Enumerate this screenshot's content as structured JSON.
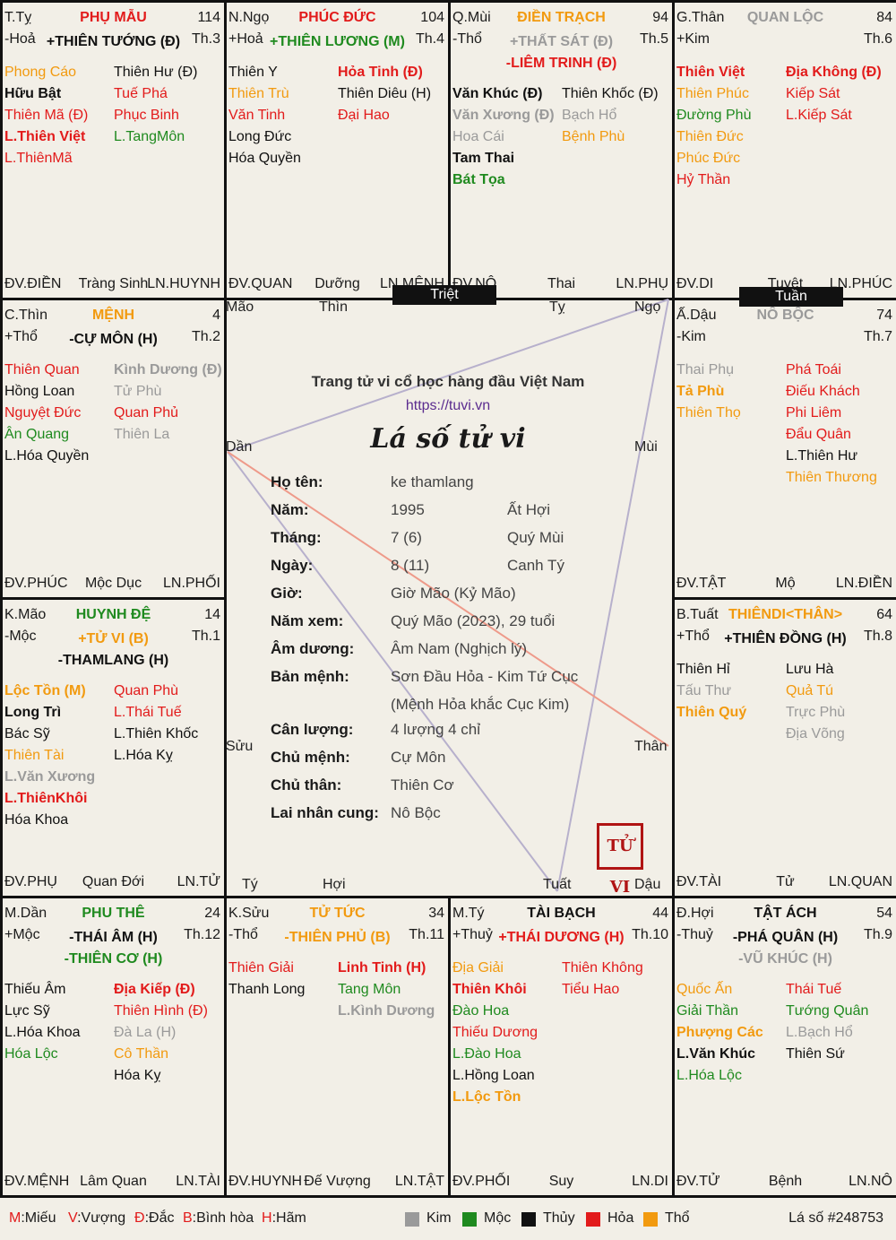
{
  "center": {
    "branches": {
      "mao": "Mão",
      "thin": "Thìn",
      "ty": "Tỵ",
      "ngo": "Ngọ",
      "dan": "Dần",
      "mui": "Mùi",
      "suu": "Sửu",
      "than": "Thân",
      "tyy": "Tý",
      "hoi": "Hợi",
      "tuat": "Tuất",
      "dau": "Dậu"
    },
    "triet": "Triệt",
    "tuan": "Tuần",
    "site_title": "Trang tử vi cổ học hàng đầu Việt Nam",
    "url": "https://tuvi.vn",
    "main_title": "Lá số tử vi",
    "seal": "TỬ VI",
    "info": [
      {
        "k": "Họ tên:",
        "v": "ke thamlang",
        "v2": ""
      },
      {
        "k": "Năm:",
        "v": "1995",
        "v2": "Ất Hợi"
      },
      {
        "k": "Tháng:",
        "v": "7 (6)",
        "v2": "Quý Mùi"
      },
      {
        "k": "Ngày:",
        "v": "8 (11)",
        "v2": "Canh Tý"
      },
      {
        "k": "Giờ:",
        "v": "Giờ Mão (Kỷ Mão)",
        "v2": ""
      },
      {
        "k": "Năm xem:",
        "v": "Quý Mão (2023), 29 tuổi",
        "v2": ""
      },
      {
        "k": "Âm dương:",
        "v": "Âm Nam (Nghịch lý)",
        "v2": ""
      },
      {
        "k": "Bản mệnh:",
        "v": "Sơn Đầu Hỏa - Kim Tứ Cục",
        "v2": ""
      },
      {
        "k": "",
        "v": "(Mệnh Hỏa khắc Cục Kim)",
        "v2": ""
      },
      {
        "k": "Cân lượng:",
        "v": "4 lượng 4 chỉ",
        "v2": ""
      },
      {
        "k": "Chủ mệnh:",
        "v": "Cự Môn",
        "v2": ""
      },
      {
        "k": "Chủ thân:",
        "v": "Thiên Cơ",
        "v2": ""
      },
      {
        "k": "Lai nhân cung:",
        "v": "Nô Bộc",
        "v2": ""
      }
    ]
  },
  "colors": {
    "K": "#9a9a9a",
    "M": "#1f8a1f",
    "T": "#111111",
    "H": "#e21b1b",
    "O": "#f29a0f"
  },
  "cells": [
    {
      "id": "ty",
      "branch": "T.Tỵ",
      "eh": "-Hoả",
      "pname": "PHỤ MẪU",
      "pc": "H",
      "age": "114",
      "th": "Th.3",
      "mstars": [
        {
          "t": "+THIÊN TƯỚNG (Đ)",
          "c": "T"
        }
      ],
      "left": [
        {
          "t": "Phong Cáo",
          "c": "O"
        },
        {
          "t": "Hữu Bật",
          "c": "T",
          "b": 1
        },
        {
          "t": "Thiên Mã (Đ)",
          "c": "H"
        },
        {
          "t": "L.Thiên Việt",
          "c": "H",
          "b": 1
        },
        {
          "t": "L.ThiênMã",
          "c": "H"
        }
      ],
      "right": [
        {
          "t": "Thiên Hư (Đ)",
          "c": "T"
        },
        {
          "t": "Tuế Phá",
          "c": "H"
        },
        {
          "t": "Phục Binh",
          "c": "H"
        },
        {
          "t": "L.TangMôn",
          "c": "M"
        }
      ],
      "foot": [
        "ĐV.ĐIỀN",
        "Tràng Sinh",
        "LN.HUYNH"
      ]
    },
    {
      "id": "ngo",
      "branch": "N.Ngọ",
      "eh": "+Hoả",
      "pname": "PHÚC ĐỨC",
      "pc": "H",
      "age": "104",
      "th": "Th.4",
      "mstars": [
        {
          "t": "+THIÊN LƯƠNG (M)",
          "c": "M"
        }
      ],
      "left": [
        {
          "t": "Thiên Y",
          "c": "T"
        },
        {
          "t": "Thiên Trù",
          "c": "O"
        },
        {
          "t": "Văn Tinh",
          "c": "H"
        },
        {
          "t": "Long Đức",
          "c": "T"
        },
        {
          "t": "Hóa Quyền",
          "c": "T"
        }
      ],
      "right": [
        {
          "t": "Hỏa Tinh (Đ)",
          "c": "H",
          "b": 1
        },
        {
          "t": "Thiên Diêu (H)",
          "c": "T"
        },
        {
          "t": "Đại Hao",
          "c": "H"
        }
      ],
      "foot": [
        "ĐV.QUAN",
        "Dưỡng",
        "LN.MỆNH"
      ]
    },
    {
      "id": "mui",
      "branch": "Q.Mùi",
      "eh": "-Thổ",
      "pname": "ĐIỀN TRẠCH",
      "pc": "O",
      "age": "94",
      "th": "Th.5",
      "mstars": [
        {
          "t": "+THẤT SÁT (Đ)",
          "c": "K"
        },
        {
          "t": "-LIÊM TRINH (Đ)",
          "c": "H"
        }
      ],
      "left": [
        {
          "t": "Văn Khúc (Đ)",
          "c": "T",
          "b": 1
        },
        {
          "t": "Văn Xương (Đ)",
          "c": "K",
          "b": 1
        },
        {
          "t": "Hoa Cái",
          "c": "K"
        },
        {
          "t": "Tam Thai",
          "c": "T",
          "b": 1
        },
        {
          "t": "Bát Tọa",
          "c": "M",
          "b": 1
        }
      ],
      "right": [
        {
          "t": "Thiên Khốc (Đ)",
          "c": "T"
        },
        {
          "t": "Bạch Hổ",
          "c": "K"
        },
        {
          "t": "Bệnh Phù",
          "c": "O"
        }
      ],
      "foot": [
        "ĐV.NÔ",
        "Thai",
        "LN.PHỤ"
      ]
    },
    {
      "id": "than_top",
      "branch": "G.Thân",
      "eh": "+Kim",
      "pname": "QUAN LỘC",
      "pc": "K",
      "age": "84",
      "th": "Th.6",
      "mstars": [],
      "left": [
        {
          "t": "Thiên Việt",
          "c": "H",
          "b": 1
        },
        {
          "t": "Thiên Phúc",
          "c": "O"
        },
        {
          "t": "Đường Phù",
          "c": "M"
        },
        {
          "t": "Thiên Đức",
          "c": "O"
        },
        {
          "t": "Phúc Đức",
          "c": "O"
        },
        {
          "t": "Hỷ Thần",
          "c": "H"
        }
      ],
      "right": [
        {
          "t": "Địa Không (Đ)",
          "c": "H",
          "b": 1
        },
        {
          "t": "Kiếp Sát",
          "c": "H"
        },
        {
          "t": "L.Kiếp Sát",
          "c": "H"
        }
      ],
      "foot": [
        "ĐV.DI",
        "Tuyệt",
        "LN.PHÚC"
      ]
    },
    {
      "id": "thin",
      "branch": "C.Thìn",
      "eh": "+Thổ",
      "pname": "MỆNH",
      "pc": "O",
      "age": "4",
      "th": "Th.2",
      "mstars": [
        {
          "t": "-CỰ MÔN (H)",
          "c": "T"
        }
      ],
      "left": [
        {
          "t": "Thiên Quan",
          "c": "H"
        },
        {
          "t": "Hồng Loan",
          "c": "T"
        },
        {
          "t": "Nguyệt Đức",
          "c": "H"
        },
        {
          "t": "Ân Quang",
          "c": "M"
        },
        {
          "t": "L.Hóa Quyền",
          "c": "T"
        }
      ],
      "right": [
        {
          "t": "Kình Dương (Đ)",
          "c": "K",
          "b": 1
        },
        {
          "t": "Tử Phù",
          "c": "K"
        },
        {
          "t": "Quan Phủ",
          "c": "H"
        },
        {
          "t": "Thiên La",
          "c": "K"
        }
      ],
      "foot": [
        "ĐV.PHÚC",
        "Mộc Dục",
        "LN.PHỐI"
      ]
    },
    {
      "id": "dau",
      "branch": "Ấ.Dậu",
      "eh": "-Kim",
      "pname": "NÔ BỘC",
      "pc": "K",
      "age": "74",
      "th": "Th.7",
      "mstars": [],
      "left": [
        {
          "t": "Thai Phụ",
          "c": "K"
        },
        {
          "t": "Tả Phù",
          "c": "O",
          "b": 1
        },
        {
          "t": "Thiên Thọ",
          "c": "O"
        }
      ],
      "right": [
        {
          "t": "Phá Toái",
          "c": "H"
        },
        {
          "t": "Điếu Khách",
          "c": "H"
        },
        {
          "t": "Phi Liêm",
          "c": "H"
        },
        {
          "t": "Đẩu Quân",
          "c": "H"
        },
        {
          "t": "L.Thiên Hư",
          "c": "T"
        },
        {
          "t": "Thiên Thương",
          "c": "O"
        }
      ],
      "foot": [
        "ĐV.TẬT",
        "Mộ",
        "LN.ĐIỀN"
      ]
    },
    {
      "id": "mao",
      "branch": "K.Mão",
      "eh": "-Mộc",
      "pname": "HUYNH ĐỆ",
      "pc": "M",
      "age": "14",
      "th": "Th.1",
      "mstars": [
        {
          "t": "+TỬ VI (B)",
          "c": "O"
        },
        {
          "t": "-THAMLANG (H)",
          "c": "T"
        }
      ],
      "left": [
        {
          "t": "Lộc Tồn (M)",
          "c": "O",
          "b": 1
        },
        {
          "t": "Long Trì",
          "c": "T",
          "b": 1
        },
        {
          "t": "Bác Sỹ",
          "c": "T"
        },
        {
          "t": "Thiên Tài",
          "c": "O"
        },
        {
          "t": "L.Văn Xương",
          "c": "K",
          "b": 1
        },
        {
          "t": "L.ThiênKhôi",
          "c": "H",
          "b": 1
        },
        {
          "t": "Hóa Khoa",
          "c": "T"
        }
      ],
      "right": [
        {
          "t": "Quan Phù",
          "c": "H"
        },
        {
          "t": "L.Thái Tuế",
          "c": "H"
        },
        {
          "t": "L.Thiên Khốc",
          "c": "T"
        },
        {
          "t": "L.Hóa Kỵ",
          "c": "T"
        }
      ],
      "foot": [
        "ĐV.PHỤ",
        "Quan Đới",
        "LN.TỬ"
      ]
    },
    {
      "id": "tuat",
      "branch": "B.Tuất",
      "eh": "+Thổ",
      "pname": "THIÊNDI<THÂN>",
      "pc": "O",
      "age": "64",
      "th": "Th.8",
      "mstars": [
        {
          "t": "+THIÊN ĐỒNG (H)",
          "c": "T"
        }
      ],
      "left": [
        {
          "t": "Thiên Hỉ",
          "c": "T"
        },
        {
          "t": "Tấu Thư",
          "c": "K"
        },
        {
          "t": "Thiên Quý",
          "c": "O",
          "b": 1
        }
      ],
      "right": [
        {
          "t": "Lưu Hà",
          "c": "T"
        },
        {
          "t": "Quả Tú",
          "c": "O"
        },
        {
          "t": "Trực Phù",
          "c": "K"
        },
        {
          "t": "Địa Võng",
          "c": "K"
        }
      ],
      "foot": [
        "ĐV.TÀI",
        "Tử",
        "LN.QUAN"
      ]
    },
    {
      "id": "dan",
      "branch": "M.Dần",
      "eh": "+Mộc",
      "pname": "PHU THÊ",
      "pc": "M",
      "age": "24",
      "th": "Th.12",
      "mstars": [
        {
          "t": "-THÁI ÂM (H)",
          "c": "T"
        },
        {
          "t": "-THIÊN CƠ (H)",
          "c": "M"
        }
      ],
      "left": [
        {
          "t": "Thiếu Âm",
          "c": "T"
        },
        {
          "t": "Lực Sỹ",
          "c": "T"
        },
        {
          "t": "L.Hóa Khoa",
          "c": "T"
        },
        {
          "t": "Hóa Lộc",
          "c": "M"
        }
      ],
      "right": [
        {
          "t": "Địa Kiếp (Đ)",
          "c": "H",
          "b": 1
        },
        {
          "t": "Thiên Hình (Đ)",
          "c": "H"
        },
        {
          "t": "Đà La (H)",
          "c": "K"
        },
        {
          "t": "Cô Thần",
          "c": "O"
        },
        {
          "t": "Hóa Kỵ",
          "c": "T"
        }
      ],
      "foot": [
        "ĐV.MỆNH",
        "Lâm Quan",
        "LN.TÀI"
      ]
    },
    {
      "id": "suu",
      "branch": "K.Sửu",
      "eh": "-Thổ",
      "pname": "TỬ TỨC",
      "pc": "O",
      "age": "34",
      "th": "Th.11",
      "mstars": [
        {
          "t": "-THIÊN PHỦ (B)",
          "c": "O"
        }
      ],
      "left": [
        {
          "t": "Thiên Giải",
          "c": "H"
        },
        {
          "t": "Thanh Long",
          "c": "T"
        }
      ],
      "right": [
        {
          "t": "Linh Tinh (H)",
          "c": "H",
          "b": 1
        },
        {
          "t": "Tang Môn",
          "c": "M"
        },
        {
          "t": "L.Kình Dương",
          "c": "K",
          "b": 1
        }
      ],
      "foot": [
        "ĐV.HUYNH",
        "Đế Vượng",
        "LN.TẬT"
      ]
    },
    {
      "id": "tyy",
      "branch": "M.Tý",
      "eh": "+Thuỷ",
      "pname": "TÀI BẠCH",
      "pc": "T",
      "age": "44",
      "th": "Th.10",
      "mstars": [
        {
          "t": "+THÁI DƯƠNG (H)",
          "c": "H"
        }
      ],
      "left": [
        {
          "t": "Địa Giải",
          "c": "O"
        },
        {
          "t": "Thiên Khôi",
          "c": "H",
          "b": 1
        },
        {
          "t": "Đào Hoa",
          "c": "M"
        },
        {
          "t": "Thiếu Dương",
          "c": "H"
        },
        {
          "t": "L.Đào Hoa",
          "c": "M"
        },
        {
          "t": "L.Hồng Loan",
          "c": "T"
        },
        {
          "t": "L.Lộc Tồn",
          "c": "O",
          "b": 1
        }
      ],
      "right": [
        {
          "t": "Thiên Không",
          "c": "H"
        },
        {
          "t": "Tiểu Hao",
          "c": "H"
        }
      ],
      "foot": [
        "ĐV.PHỐI",
        "Suy",
        "LN.DI"
      ]
    },
    {
      "id": "hoi",
      "branch": "Đ.Hợi",
      "eh": "-Thuỷ",
      "pname": "TẬT ÁCH",
      "pc": "T",
      "age": "54",
      "th": "Th.9",
      "mstars": [
        {
          "t": "-PHÁ QUÂN (H)",
          "c": "T"
        },
        {
          "t": "-VŨ KHÚC (H)",
          "c": "K"
        }
      ],
      "left": [
        {
          "t": "Quốc Ấn",
          "c": "O"
        },
        {
          "t": "Giải Thần",
          "c": "M"
        },
        {
          "t": "Phượng Các",
          "c": "O",
          "b": 1
        },
        {
          "t": "L.Văn Khúc",
          "c": "T",
          "b": 1
        },
        {
          "t": "L.Hóa Lộc",
          "c": "M"
        }
      ],
      "right": [
        {
          "t": "Thái Tuế",
          "c": "H"
        },
        {
          "t": "Tướng Quân",
          "c": "M"
        },
        {
          "t": "L.Bạch Hổ",
          "c": "K"
        },
        {
          "t": "Thiên Sứ",
          "c": "T"
        }
      ],
      "foot": [
        "ĐV.TỬ",
        "Bệnh",
        "LN.NÔ"
      ]
    }
  ],
  "legend": {
    "brightness": [
      {
        "k": "M",
        "v": "Miếu"
      },
      {
        "k": "V",
        "v": "Vượng"
      },
      {
        "k": "Đ",
        "v": "Đắc"
      },
      {
        "k": "B",
        "v": "Bình hòa"
      },
      {
        "k": "H",
        "v": "Hãm"
      }
    ],
    "elements": [
      {
        "name": "Kim",
        "color": "#9a9a9a"
      },
      {
        "name": "Mộc",
        "color": "#1f8a1f"
      },
      {
        "name": "Thủy",
        "color": "#111111"
      },
      {
        "name": "Hỏa",
        "color": "#e21b1b"
      },
      {
        "name": "Thổ",
        "color": "#f29a0f"
      }
    ],
    "chart_no": "Lá số #248753"
  }
}
